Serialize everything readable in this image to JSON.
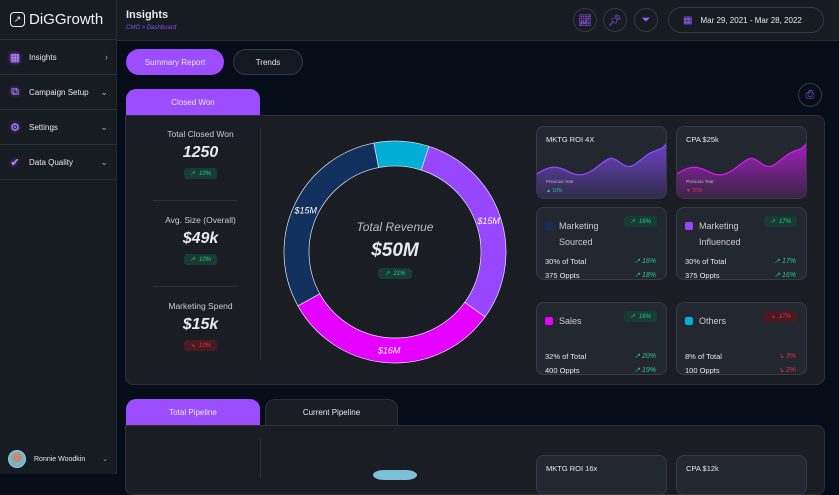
{
  "app": {
    "name": "DiGGrowth"
  },
  "sidebar": {
    "items": [
      {
        "label": "Insights",
        "icon": "grid-icon"
      },
      {
        "label": "Campaign Setup",
        "icon": "campaign-icon"
      },
      {
        "label": "Settings",
        "icon": "gear-icon"
      },
      {
        "label": "Data Quality",
        "icon": "check-badge-icon"
      }
    ],
    "user": "Ronnie Woodkin"
  },
  "header": {
    "title": "Insights",
    "breadcrumb": "CMO > Dashboard",
    "date_range": "Mar 29, 2021 - Mar 28, 2022"
  },
  "view_tabs": [
    "Summary Report",
    "Trends"
  ],
  "section1": {
    "tab": "Closed Won",
    "kpis": [
      {
        "label": "Total Closed Won",
        "value": "1250",
        "change": "10%",
        "dir": "up"
      },
      {
        "label": "Avg. Size (Overall)",
        "value": "$49k",
        "change": "10%",
        "dir": "up"
      },
      {
        "label": "Marketing Spend",
        "value": "$15k",
        "change": "10%",
        "dir": "down"
      }
    ],
    "donut": {
      "title": "Total Revenue",
      "total": "$50M",
      "change": "21%",
      "segments": [
        {
          "label": "",
          "value": 4,
          "color": "#00aed6"
        },
        {
          "label": "$15M",
          "value": 15,
          "color": "#9747ff"
        },
        {
          "label": "$16M",
          "value": 16,
          "color": "#e600ff"
        },
        {
          "label": "$15M",
          "value": 15,
          "color": "#12305e"
        }
      ]
    },
    "mini": [
      {
        "title": "MKTG ROI 4X",
        "prev": "Previous Year",
        "change": "10%",
        "dir": "up",
        "color": "#8a4dff"
      },
      {
        "title": "CPA $25k",
        "prev": "Previous Year",
        "change": "20%",
        "dir": "down",
        "color": "#d21bf0"
      }
    ],
    "sources": [
      {
        "name": "Marketing Sourced",
        "color": "#12305e",
        "change": "16%",
        "dir": "up",
        "rows": [
          [
            "30% of Total",
            "16%",
            "up"
          ],
          [
            "375 Oppts",
            "18%",
            "up"
          ]
        ]
      },
      {
        "name": "Marketing Influenced",
        "color": "#9747ff",
        "change": "17%",
        "dir": "up",
        "rows": [
          [
            "30% of Total",
            "17%",
            "up"
          ],
          [
            "375 Oppts",
            "16%",
            "up"
          ]
        ]
      },
      {
        "name": "Sales",
        "color": "#e600ff",
        "change": "16%",
        "dir": "up",
        "rows": [
          [
            "32% of Total",
            "20%",
            "up"
          ],
          [
            "400 Oppts",
            "19%",
            "up"
          ]
        ]
      },
      {
        "name": "Others",
        "color": "#00aed6",
        "change": "17%",
        "dir": "down",
        "rows": [
          [
            "8% of Total",
            "3%",
            "down"
          ],
          [
            "100 Oppts",
            "2%",
            "down"
          ]
        ]
      }
    ]
  },
  "section2": {
    "tabs": [
      "Total Pipeline",
      "Current Pipeline"
    ],
    "mini": [
      {
        "title": "MKTG ROI 16x"
      },
      {
        "title": "CPA $12k"
      }
    ]
  }
}
